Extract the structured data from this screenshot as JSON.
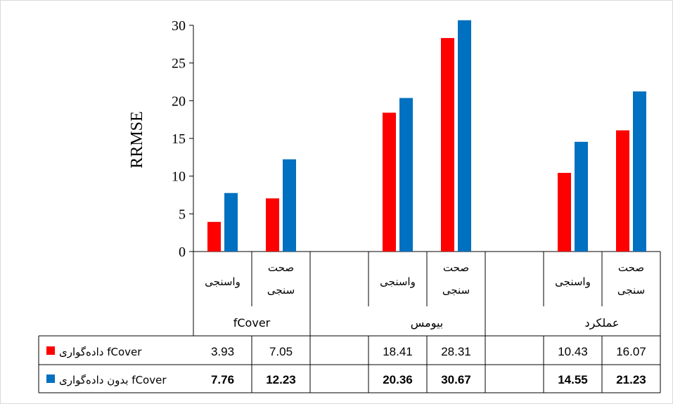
{
  "chart_data": {
    "type": "bar",
    "ylabel": "RRMSE",
    "ylim": [
      0,
      30
    ],
    "yticks": [
      0,
      5,
      10,
      15,
      20,
      25,
      30
    ],
    "groups": [
      {
        "label": "fCover",
        "categories": [
          "واسنجی",
          "صحت سنجی"
        ]
      },
      {
        "label": "بیومس",
        "categories": [
          "واسنجی",
          "صحت سنجی"
        ]
      },
      {
        "label": "عملکرد",
        "categories": [
          "واسنجی",
          "صحت سنجی"
        ]
      }
    ],
    "category_lines": {
      "calibration": [
        "واسنجی"
      ],
      "validation": [
        "صحت",
        "سنجی"
      ]
    },
    "series": [
      {
        "name": "داده‌گواری fCover",
        "color": "#ff0000",
        "values": [
          3.93,
          7.05,
          18.41,
          28.31,
          10.43,
          16.07
        ]
      },
      {
        "name": "بدون داده‌گواری fCover",
        "color": "#0070c0",
        "values": [
          7.76,
          12.23,
          20.36,
          30.67,
          14.55,
          21.23
        ]
      }
    ],
    "legend": "data table rows"
  }
}
